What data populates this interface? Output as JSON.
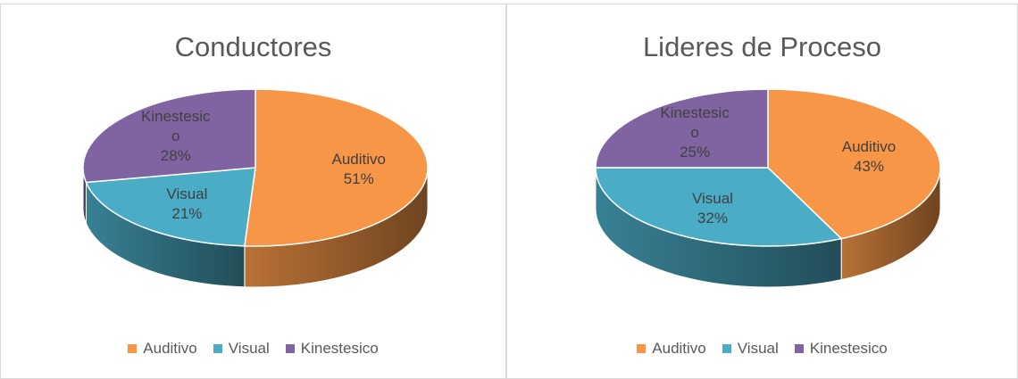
{
  "chart_data": [
    {
      "type": "pie",
      "title": "Conductores",
      "categories": [
        "Auditivo",
        "Visual",
        "Kinestesico"
      ],
      "values": [
        51,
        21,
        28
      ],
      "value_labels": [
        "51%",
        "21%",
        "28%"
      ],
      "colors": [
        "#F79646",
        "#4BACC6",
        "#8064A2"
      ],
      "legend": "bottom"
    },
    {
      "type": "pie",
      "title": "Lideres de Proceso",
      "categories": [
        "Auditivo",
        "Visual",
        "Kinestesico"
      ],
      "values": [
        43,
        32,
        25
      ],
      "value_labels": [
        "43%",
        "32%",
        "25%"
      ],
      "colors": [
        "#F79646",
        "#4BACC6",
        "#8064A2"
      ],
      "legend": "bottom"
    }
  ]
}
